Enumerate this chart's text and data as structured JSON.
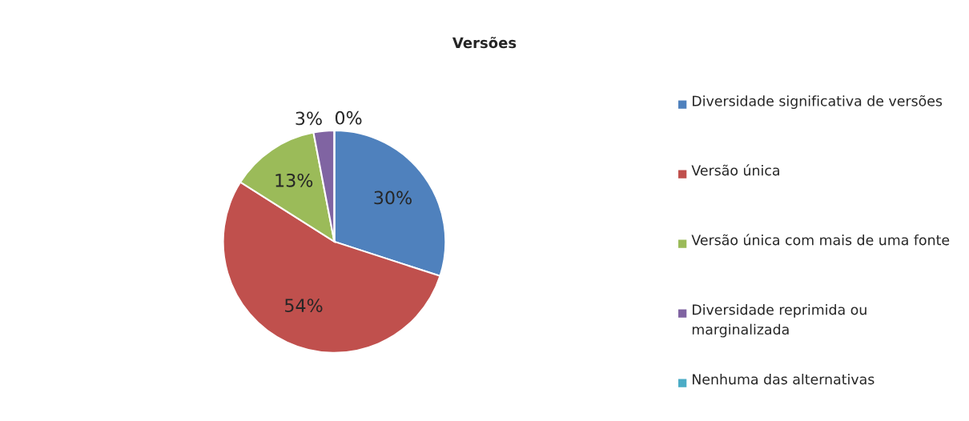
{
  "chart_data": {
    "type": "pie",
    "title": "Versões",
    "categories": [
      "Diversidade significativa de versões",
      "Versão única",
      "Versão única com mais de uma fonte",
      "Diversidade reprimida ou marginalizada",
      "Nenhuma das alternativas"
    ],
    "values": [
      30,
      54,
      13,
      3,
      0
    ],
    "colors": [
      "#4f81bd",
      "#c0504d",
      "#9bbb59",
      "#8064a2",
      "#4bacc6"
    ],
    "value_labels": [
      "30%",
      "54%",
      "13%",
      "3%",
      "0%"
    ],
    "legend": "right"
  }
}
